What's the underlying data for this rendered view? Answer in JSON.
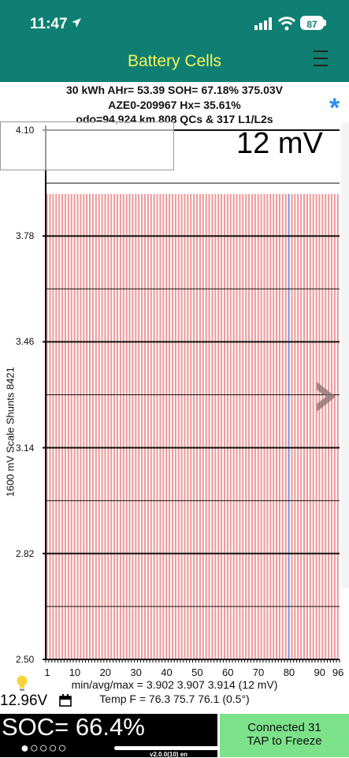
{
  "status": {
    "time": "11:47",
    "battery": "87"
  },
  "header": {
    "title": "Battery Cells"
  },
  "summary": {
    "line1": "30 kWh  AHr= 53.39  SOH= 67.18%   375.03V",
    "line2": "AZE0-209967   Hx= 35.61%",
    "line3": "odo=94,924 km 808 QCs & 317 L1/L2s"
  },
  "asterisk": "*",
  "chart_data": {
    "type": "bar",
    "yaxis_title": "1600 mV Scale   Shunts 8421",
    "ylim": [
      2.5,
      4.1
    ],
    "yticks": [
      "4.10",
      "3.78",
      "3.46",
      "3.14",
      "2.82",
      "2.50"
    ],
    "xticks": [
      "1",
      "10",
      "20",
      "30",
      "40",
      "50",
      "60",
      "70",
      "80",
      "90",
      "96"
    ],
    "spread_label": "12 mV",
    "cell_count": 96,
    "cell_voltage": 3.907,
    "highlight_cell": 80,
    "colors": {
      "bar": "#ee9a9a",
      "highlight": "#7f8fe8",
      "grid": "#111111"
    }
  },
  "stats": {
    "minavgmax": "min/avg/max = 3.902 3.907 3.914  (12 mV)",
    "temp": "Temp F = 76.3  75.7  76.1  (0.5°)"
  },
  "footer": {
    "voltage": "12.96V",
    "soc": "SOC= 66.4%",
    "dots": "●○○○○",
    "version": "v2.0.0(10) en",
    "connected": "Connected 31",
    "tap": "TAP to Freeze"
  }
}
